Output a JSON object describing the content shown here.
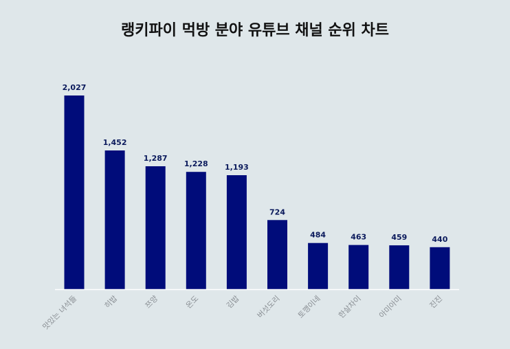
{
  "chart_data": {
    "type": "bar",
    "title": "랭키파이 먹방 분야 유튜브 채널 순위 차트",
    "categories": [
      "맛있는 녀석들",
      "히밥",
      "쯔양",
      "온도",
      "김밥",
      "버섯도리",
      "토깽이네",
      "한살차이",
      "아미아미",
      "진진"
    ],
    "values": [
      2027,
      1452,
      1287,
      1228,
      1193,
      724,
      484,
      463,
      459,
      440
    ],
    "value_labels": [
      "2,027",
      "1,452",
      "1,287",
      "1,228",
      "1,193",
      "724",
      "484",
      "463",
      "459",
      "440"
    ],
    "xlabel": "",
    "ylabel": "",
    "ylim": [
      0,
      2027
    ],
    "grid": false,
    "bar_color": "#000c7a",
    "baseline_color": "#ffffff",
    "value_label_color": "#0b1a5c",
    "category_label_color": "#8a8f94"
  }
}
